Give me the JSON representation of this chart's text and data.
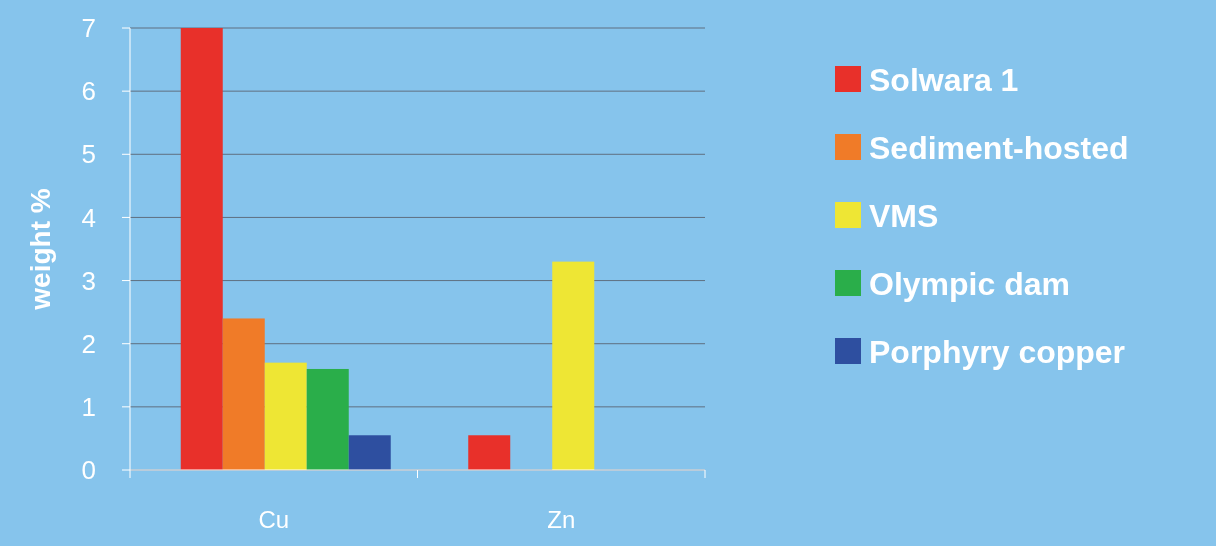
{
  "chart_data": {
    "type": "bar",
    "ylabel": "weight %",
    "categories": [
      "Cu",
      "Zn"
    ],
    "series": [
      {
        "name": "Solwara 1",
        "color": "#e8302a",
        "values": [
          7.0,
          0.55
        ]
      },
      {
        "name": "Sediment-hosted",
        "color": "#f07b28",
        "values": [
          2.4,
          null
        ]
      },
      {
        "name": "VMS",
        "color": "#eee634",
        "values": [
          1.7,
          3.3
        ]
      },
      {
        "name": "Olympic dam",
        "color": "#2aae4a",
        "values": [
          1.6,
          null
        ]
      },
      {
        "name": "Porphyry copper",
        "color": "#2e4fa0",
        "values": [
          0.55,
          null
        ]
      }
    ],
    "ylim": [
      0,
      7
    ],
    "yticks": [
      0,
      1,
      2,
      3,
      4,
      5,
      6,
      7
    ],
    "grid": "y",
    "legend": "right"
  }
}
